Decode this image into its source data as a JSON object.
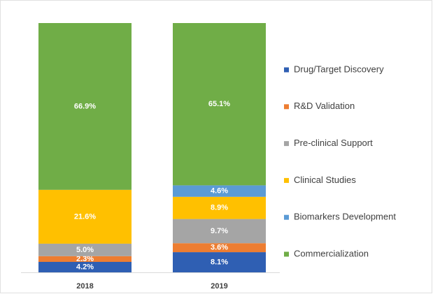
{
  "chart_data": {
    "type": "stacked_bar",
    "categories": [
      "2018",
      "2019"
    ],
    "series": [
      {
        "name": "Drug/Target Discovery",
        "color": "#2f5fb3",
        "values": [
          4.2,
          8.1
        ],
        "value_labels": [
          "4.2%",
          "8.1%"
        ]
      },
      {
        "name": "R&D Validation",
        "color": "#ed7d31",
        "values": [
          2.3,
          3.6
        ],
        "value_labels": [
          "2.3%",
          "3.6%"
        ]
      },
      {
        "name": "Pre-clinical Support",
        "color": "#a5a5a5",
        "values": [
          5.0,
          9.7
        ],
        "value_labels": [
          "5.0%",
          "9.7%"
        ]
      },
      {
        "name": "Clinical Studies",
        "color": "#ffc000",
        "values": [
          21.6,
          8.9
        ],
        "value_labels": [
          "21.6%",
          "8.9%"
        ]
      },
      {
        "name": "Biomarkers Development",
        "color": "#5b9bd5",
        "values": [
          null,
          4.6
        ],
        "value_labels": [
          null,
          "4.6%"
        ]
      },
      {
        "name": "Commercialization",
        "color": "#70ad47",
        "values": [
          66.9,
          65.1
        ],
        "value_labels": [
          "66.9%",
          "65.1%"
        ]
      }
    ],
    "legend": "right"
  }
}
